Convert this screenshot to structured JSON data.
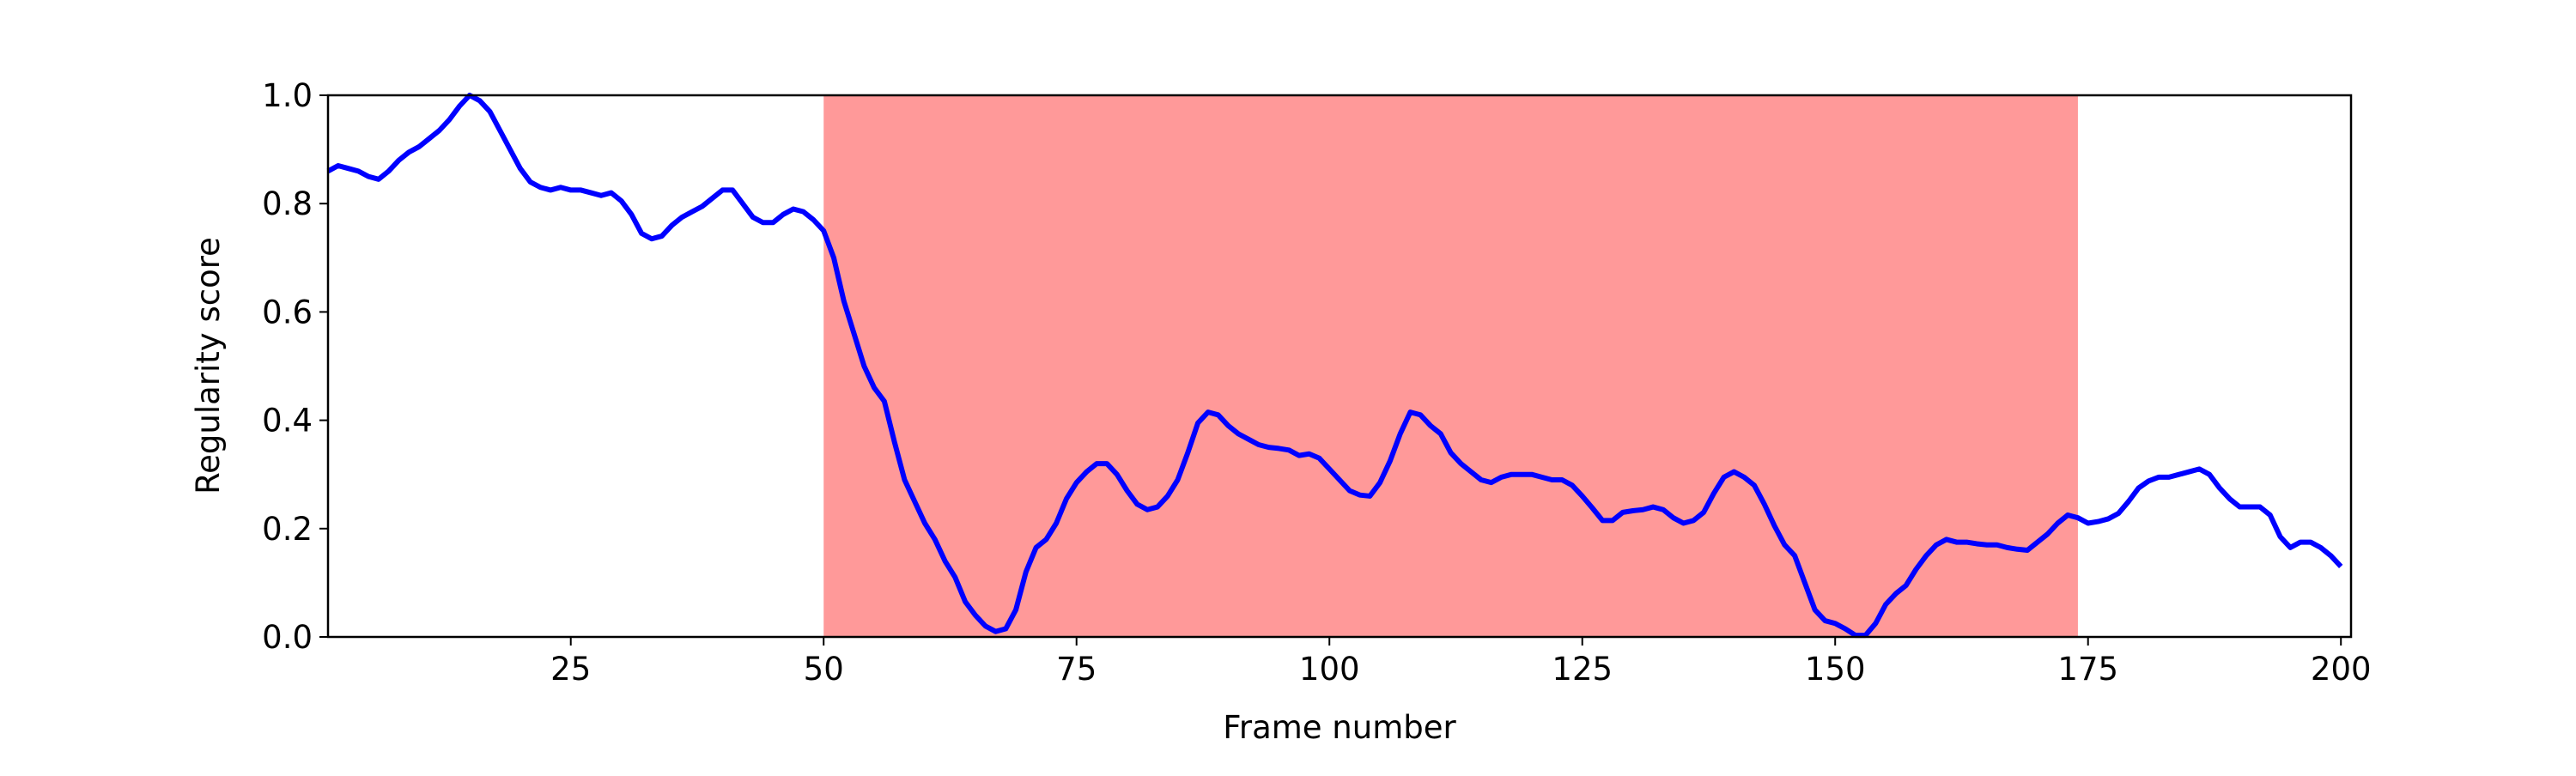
{
  "chart_data": {
    "type": "line",
    "xlabel": "Frame number",
    "ylabel": "Regularity score",
    "x": [
      1,
      2,
      3,
      4,
      5,
      6,
      7,
      8,
      9,
      10,
      11,
      12,
      13,
      14,
      15,
      16,
      17,
      18,
      19,
      20,
      21,
      22,
      23,
      24,
      25,
      26,
      27,
      28,
      29,
      30,
      31,
      32,
      33,
      34,
      35,
      36,
      37,
      38,
      39,
      40,
      41,
      42,
      43,
      44,
      45,
      46,
      47,
      48,
      49,
      50,
      51,
      52,
      53,
      54,
      55,
      56,
      57,
      58,
      59,
      60,
      61,
      62,
      63,
      64,
      65,
      66,
      67,
      68,
      69,
      70,
      71,
      72,
      73,
      74,
      75,
      76,
      77,
      78,
      79,
      80,
      81,
      82,
      83,
      84,
      85,
      86,
      87,
      88,
      89,
      90,
      91,
      92,
      93,
      94,
      95,
      96,
      97,
      98,
      99,
      100,
      101,
      102,
      103,
      104,
      105,
      106,
      107,
      108,
      109,
      110,
      111,
      112,
      113,
      114,
      115,
      116,
      117,
      118,
      119,
      120,
      121,
      122,
      123,
      124,
      125,
      126,
      127,
      128,
      129,
      130,
      131,
      132,
      133,
      134,
      135,
      136,
      137,
      138,
      139,
      140,
      141,
      142,
      143,
      144,
      145,
      146,
      147,
      148,
      149,
      150,
      151,
      152,
      153,
      154,
      155,
      156,
      157,
      158,
      159,
      160,
      161,
      162,
      163,
      164,
      165,
      166,
      167,
      168,
      169,
      170,
      171,
      172,
      173,
      174,
      175,
      176,
      177,
      178,
      179,
      180,
      181,
      182,
      183,
      184,
      185,
      186,
      187,
      188,
      189,
      190,
      191,
      192,
      193,
      194,
      195,
      196,
      197,
      198,
      199,
      200
    ],
    "series": [
      {
        "color": "#0000ff",
        "values": [
          0.86,
          0.87,
          0.865,
          0.86,
          0.85,
          0.845,
          0.86,
          0.88,
          0.895,
          0.905,
          0.92,
          0.935,
          0.955,
          0.98,
          1.0,
          0.99,
          0.97,
          0.935,
          0.9,
          0.865,
          0.84,
          0.83,
          0.825,
          0.83,
          0.825,
          0.825,
          0.82,
          0.815,
          0.82,
          0.805,
          0.78,
          0.745,
          0.735,
          0.74,
          0.76,
          0.775,
          0.785,
          0.795,
          0.81,
          0.825,
          0.825,
          0.8,
          0.775,
          0.765,
          0.765,
          0.78,
          0.79,
          0.785,
          0.77,
          0.75,
          0.7,
          0.62,
          0.56,
          0.5,
          0.46,
          0.435,
          0.36,
          0.29,
          0.25,
          0.21,
          0.18,
          0.14,
          0.11,
          0.065,
          0.04,
          0.02,
          0.01,
          0.015,
          0.05,
          0.12,
          0.165,
          0.18,
          0.21,
          0.255,
          0.285,
          0.305,
          0.32,
          0.32,
          0.3,
          0.27,
          0.245,
          0.235,
          0.24,
          0.26,
          0.29,
          0.34,
          0.395,
          0.415,
          0.41,
          0.39,
          0.375,
          0.365,
          0.355,
          0.35,
          0.348,
          0.345,
          0.335,
          0.338,
          0.33,
          0.31,
          0.29,
          0.27,
          0.262,
          0.26,
          0.285,
          0.325,
          0.375,
          0.415,
          0.41,
          0.39,
          0.375,
          0.34,
          0.32,
          0.305,
          0.29,
          0.285,
          0.295,
          0.3,
          0.3,
          0.3,
          0.295,
          0.29,
          0.29,
          0.28,
          0.26,
          0.238,
          0.215,
          0.215,
          0.23,
          0.233,
          0.235,
          0.24,
          0.235,
          0.22,
          0.21,
          0.215,
          0.23,
          0.265,
          0.295,
          0.305,
          0.295,
          0.28,
          0.245,
          0.205,
          0.17,
          0.15,
          0.1,
          0.05,
          0.03,
          0.025,
          0.015,
          0.003,
          0.003,
          0.025,
          0.06,
          0.08,
          0.095,
          0.125,
          0.15,
          0.17,
          0.18,
          0.175,
          0.175,
          0.172,
          0.17,
          0.17,
          0.165,
          0.162,
          0.16,
          0.175,
          0.19,
          0.21,
          0.225,
          0.22,
          0.21,
          0.213,
          0.218,
          0.228,
          0.25,
          0.275,
          0.288,
          0.295,
          0.295,
          0.3,
          0.305,
          0.31,
          0.3,
          0.275,
          0.255,
          0.24,
          0.24,
          0.24,
          0.225,
          0.185,
          0.165,
          0.175,
          0.175,
          0.165,
          0.15,
          0.13
        ]
      }
    ],
    "shaded_span": [
      50,
      174
    ],
    "shade_color": "#ff9999",
    "xlim": [
      1,
      201
    ],
    "ylim": [
      0,
      1
    ],
    "xticks": [
      25,
      50,
      75,
      100,
      125,
      150,
      175,
      200
    ],
    "yticks": [
      {
        "value": 0,
        "label": "0.0"
      },
      0.2,
      0.4,
      0.6,
      0.8,
      {
        "value": 1,
        "label": "1.0"
      }
    ],
    "grid": false
  }
}
